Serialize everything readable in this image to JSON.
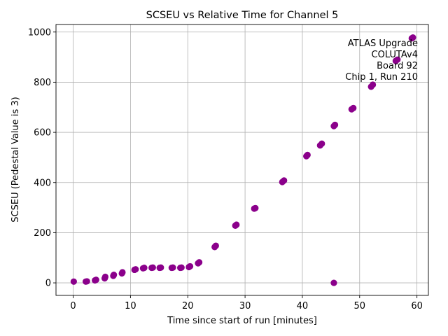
{
  "chart_data": {
    "type": "scatter",
    "title": "SCSEU vs Relative Time for Channel 5",
    "xlabel": "Time since start of run [minutes]",
    "ylabel": "SCSEU (Pedestal Value is 3)",
    "xlim": [
      -3,
      62
    ],
    "ylim": [
      -50,
      1030
    ],
    "xticks": [
      0,
      10,
      20,
      30,
      40,
      50,
      60
    ],
    "yticks": [
      0,
      200,
      400,
      600,
      800,
      1000
    ],
    "grid": true,
    "marker_color": "#8b008b",
    "annotation": {
      "lines": [
        "ATLAS Upgrade",
        "COLUTAv4",
        "Board 92",
        "Chip 1, Run 210"
      ],
      "placement": "upper-right"
    },
    "series": [
      {
        "name": "Channel 5",
        "x": [
          0.1,
          2.2,
          2.4,
          3.8,
          4.0,
          5.5,
          5.6,
          7.0,
          7.1,
          8.5,
          8.6,
          10.7,
          10.9,
          12.2,
          12.4,
          13.7,
          13.9,
          15.1,
          15.3,
          17.2,
          17.4,
          18.7,
          18.9,
          20.2,
          20.4,
          21.8,
          22.0,
          24.7,
          24.9,
          28.3,
          28.5,
          31.6,
          31.8,
          36.5,
          36.8,
          40.7,
          40.9,
          43.1,
          43.4,
          45.5,
          45.7,
          45.5,
          48.6,
          48.9,
          52.0,
          52.3,
          56.3,
          56.6,
          59.1,
          59.3
        ],
        "y": [
          5,
          5,
          6,
          10,
          12,
          18,
          24,
          28,
          32,
          38,
          42,
          52,
          54,
          58,
          60,
          60,
          61,
          60,
          61,
          60,
          61,
          60,
          61,
          63,
          66,
          78,
          82,
          143,
          148,
          228,
          232,
          296,
          298,
          402,
          408,
          505,
          510,
          548,
          555,
          625,
          630,
          0,
          692,
          697,
          782,
          790,
          885,
          890,
          975,
          978
        ]
      }
    ]
  }
}
